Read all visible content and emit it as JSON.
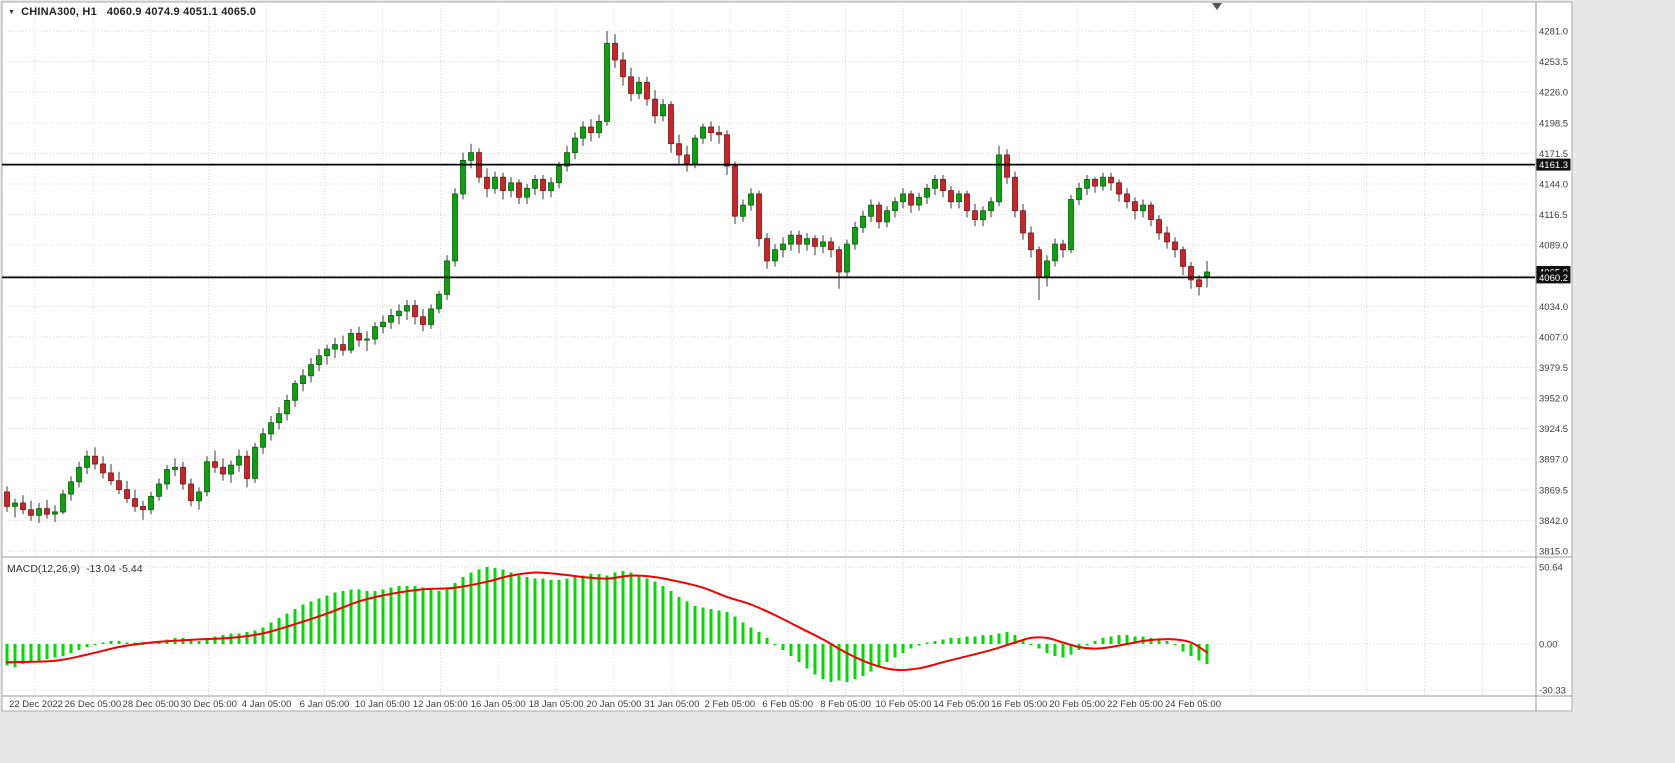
{
  "header": {
    "symbol": "CHINA300, H1",
    "ohlc": "4060.9 4074.9 4051.1 4065.0"
  },
  "icons": {
    "symbol_dropdown": "▼"
  },
  "macd_header": {
    "name": "MACD(12,26,9)",
    "values": "-13.04 -5.44"
  },
  "chart_data": {
    "type": "candlestick",
    "symbol": "CHINA300",
    "timeframe": "H1",
    "displayed_ohlc": {
      "open": 4060.9,
      "high": 4074.9,
      "low": 4051.1,
      "close": 4065.0
    },
    "price_axis": [
      "4281.0",
      "4253.5",
      "4226.0",
      "4198.5",
      "4171.5",
      "4144.0",
      "4116.5",
      "4089.0",
      "4061.5",
      "4034.0",
      "4007.0",
      "3979.5",
      "3952.0",
      "3924.5",
      "3897.0",
      "3869.5",
      "3842.0",
      "3815.0"
    ],
    "ylim": [
      3815.0,
      4281.0
    ],
    "time_axis": [
      "22 Dec 2022",
      "26 Dec 05:00",
      "28 Dec 05:00",
      "30 Dec 05:00",
      "4 Jan 05:00",
      "6 Jan 05:00",
      "10 Jan 05:00",
      "12 Jan 05:00",
      "16 Jan 05:00",
      "18 Jan 05:00",
      "20 Jan 05:00",
      "31 Jan 05:00",
      "2 Feb 05:00",
      "6 Feb 05:00",
      "8 Feb 05:00",
      "10 Feb 05:00",
      "14 Feb 05:00",
      "16 Feb 05:00",
      "20 Feb 05:00",
      "22 Feb 05:00",
      "24 Feb 05:00"
    ],
    "hlines": [
      {
        "value": 4161.3,
        "label": "4161.3"
      },
      {
        "value": 4060.2,
        "label": "4060.2"
      }
    ],
    "price_marker": {
      "value": 4065.0,
      "label": "4065.0"
    },
    "grid": true,
    "colors": {
      "bull": "#0fa00f",
      "bull_border": "#066006",
      "bear": "#c62828",
      "bear_border": "#7f1212",
      "wick": "#3a3a3a",
      "macd_histogram": "#00dc00",
      "macd_signal": "#f40000",
      "hline": "#000000",
      "grid": "#dcdcdc",
      "axis_text": "#3c3c3c",
      "label_box": "#111111",
      "label_text": "#ffffff"
    },
    "candles": [
      [
        3868,
        3873,
        3850,
        3855
      ],
      [
        3855,
        3862,
        3845,
        3858
      ],
      [
        3858,
        3865,
        3848,
        3852
      ],
      [
        3852,
        3860,
        3842,
        3847
      ],
      [
        3847,
        3858,
        3840,
        3853
      ],
      [
        3853,
        3861,
        3844,
        3848
      ],
      [
        3848,
        3856,
        3841,
        3850
      ],
      [
        3850,
        3870,
        3848,
        3866
      ],
      [
        3866,
        3882,
        3860,
        3877
      ],
      [
        3877,
        3895,
        3872,
        3890
      ],
      [
        3890,
        3905,
        3884,
        3900
      ],
      [
        3900,
        3908,
        3888,
        3893
      ],
      [
        3893,
        3900,
        3880,
        3885
      ],
      [
        3885,
        3893,
        3874,
        3878
      ],
      [
        3878,
        3886,
        3866,
        3870
      ],
      [
        3870,
        3878,
        3858,
        3862
      ],
      [
        3862,
        3870,
        3850,
        3855
      ],
      [
        3855,
        3860,
        3843,
        3852
      ],
      [
        3852,
        3868,
        3848,
        3864
      ],
      [
        3864,
        3880,
        3860,
        3875
      ],
      [
        3875,
        3892,
        3870,
        3888
      ],
      [
        3888,
        3898,
        3882,
        3890
      ],
      [
        3890,
        3895,
        3870,
        3875
      ],
      [
        3875,
        3880,
        3855,
        3860
      ],
      [
        3860,
        3872,
        3852,
        3868
      ],
      [
        3868,
        3900,
        3864,
        3895
      ],
      [
        3895,
        3905,
        3885,
        3890
      ],
      [
        3890,
        3898,
        3878,
        3884
      ],
      [
        3884,
        3896,
        3876,
        3892
      ],
      [
        3892,
        3906,
        3886,
        3900
      ],
      [
        3900,
        3905,
        3872,
        3880
      ],
      [
        3880,
        3912,
        3876,
        3908
      ],
      [
        3908,
        3925,
        3902,
        3920
      ],
      [
        3920,
        3936,
        3914,
        3930
      ],
      [
        3930,
        3944,
        3924,
        3938
      ],
      [
        3938,
        3955,
        3932,
        3950
      ],
      [
        3950,
        3968,
        3944,
        3965
      ],
      [
        3965,
        3978,
        3958,
        3972
      ],
      [
        3972,
        3988,
        3966,
        3982
      ],
      [
        3982,
        3996,
        3976,
        3990
      ],
      [
        3990,
        4000,
        3982,
        3996
      ],
      [
        3996,
        4006,
        3988,
        4000
      ],
      [
        4000,
        4008,
        3990,
        3995
      ],
      [
        3995,
        4014,
        3992,
        4010
      ],
      [
        4010,
        4016,
        3998,
        4004
      ],
      [
        4004,
        4012,
        3994,
        4005
      ],
      [
        4005,
        4020,
        4000,
        4016
      ],
      [
        4016,
        4026,
        4010,
        4020
      ],
      [
        4020,
        4032,
        4014,
        4026
      ],
      [
        4026,
        4036,
        4018,
        4030
      ],
      [
        4030,
        4040,
        4022,
        4035
      ],
      [
        4035,
        4040,
        4018,
        4025
      ],
      [
        4025,
        4032,
        4012,
        4018
      ],
      [
        4018,
        4036,
        4014,
        4032
      ],
      [
        4032,
        4048,
        4028,
        4045
      ],
      [
        4045,
        4080,
        4040,
        4075
      ],
      [
        4075,
        4140,
        4070,
        4135
      ],
      [
        4135,
        4172,
        4130,
        4165
      ],
      [
        4165,
        4180,
        4158,
        4172
      ],
      [
        4172,
        4176,
        4145,
        4150
      ],
      [
        4150,
        4158,
        4132,
        4140
      ],
      [
        4140,
        4155,
        4135,
        4150
      ],
      [
        4150,
        4154,
        4130,
        4138
      ],
      [
        4138,
        4150,
        4132,
        4145
      ],
      [
        4145,
        4148,
        4126,
        4132
      ],
      [
        4132,
        4144,
        4126,
        4140
      ],
      [
        4140,
        4152,
        4134,
        4148
      ],
      [
        4148,
        4152,
        4130,
        4138
      ],
      [
        4138,
        4150,
        4132,
        4145
      ],
      [
        4145,
        4164,
        4140,
        4160
      ],
      [
        4160,
        4178,
        4155,
        4172
      ],
      [
        4172,
        4190,
        4166,
        4185
      ],
      [
        4185,
        4200,
        4178,
        4195
      ],
      [
        4195,
        4202,
        4182,
        4190
      ],
      [
        4190,
        4206,
        4185,
        4200
      ],
      [
        4200,
        4281,
        4196,
        4270
      ],
      [
        4270,
        4278,
        4248,
        4255
      ],
      [
        4255,
        4262,
        4232,
        4240
      ],
      [
        4240,
        4248,
        4218,
        4225
      ],
      [
        4225,
        4240,
        4220,
        4235
      ],
      [
        4235,
        4240,
        4214,
        4220
      ],
      [
        4220,
        4228,
        4198,
        4205
      ],
      [
        4205,
        4220,
        4200,
        4215
      ],
      [
        4215,
        4218,
        4172,
        4180
      ],
      [
        4180,
        4188,
        4162,
        4170
      ],
      [
        4170,
        4178,
        4155,
        4162
      ],
      [
        4162,
        4188,
        4158,
        4185
      ],
      [
        4185,
        4198,
        4180,
        4195
      ],
      [
        4195,
        4200,
        4182,
        4190
      ],
      [
        4190,
        4196,
        4180,
        4188
      ],
      [
        4188,
        4192,
        4152,
        4160
      ],
      [
        4160,
        4164,
        4108,
        4115
      ],
      [
        4115,
        4130,
        4110,
        4125
      ],
      [
        4125,
        4140,
        4120,
        4135
      ],
      [
        4135,
        4138,
        4088,
        4095
      ],
      [
        4095,
        4100,
        4068,
        4075
      ],
      [
        4075,
        4090,
        4070,
        4085
      ],
      [
        4085,
        4096,
        4078,
        4090
      ],
      [
        4090,
        4102,
        4084,
        4098
      ],
      [
        4098,
        4102,
        4082,
        4090
      ],
      [
        4090,
        4100,
        4084,
        4095
      ],
      [
        4095,
        4098,
        4080,
        4088
      ],
      [
        4088,
        4098,
        4082,
        4092
      ],
      [
        4092,
        4096,
        4078,
        4085
      ],
      [
        4085,
        4088,
        4050,
        4065
      ],
      [
        4065,
        4094,
        4060,
        4090
      ],
      [
        4090,
        4110,
        4085,
        4105
      ],
      [
        4105,
        4120,
        4100,
        4115
      ],
      [
        4115,
        4130,
        4110,
        4125
      ],
      [
        4125,
        4128,
        4104,
        4110
      ],
      [
        4110,
        4124,
        4105,
        4120
      ],
      [
        4120,
        4132,
        4114,
        4128
      ],
      [
        4128,
        4140,
        4122,
        4135
      ],
      [
        4135,
        4138,
        4118,
        4125
      ],
      [
        4125,
        4136,
        4120,
        4132
      ],
      [
        4132,
        4144,
        4126,
        4140
      ],
      [
        4140,
        4152,
        4134,
        4148
      ],
      [
        4148,
        4152,
        4132,
        4138
      ],
      [
        4138,
        4142,
        4122,
        4128
      ],
      [
        4128,
        4138,
        4122,
        4135
      ],
      [
        4135,
        4138,
        4114,
        4120
      ],
      [
        4120,
        4126,
        4106,
        4112
      ],
      [
        4112,
        4124,
        4106,
        4120
      ],
      [
        4120,
        4132,
        4114,
        4128
      ],
      [
        4128,
        4178,
        4124,
        4170
      ],
      [
        4170,
        4175,
        4144,
        4150
      ],
      [
        4150,
        4155,
        4114,
        4120
      ],
      [
        4120,
        4126,
        4094,
        4100
      ],
      [
        4100,
        4106,
        4078,
        4085
      ],
      [
        4085,
        4088,
        4040,
        4060
      ],
      [
        4060,
        4080,
        4052,
        4075
      ],
      [
        4075,
        4095,
        4070,
        4090
      ],
      [
        4090,
        4094,
        4078,
        4085
      ],
      [
        4085,
        4134,
        4082,
        4130
      ],
      [
        4130,
        4145,
        4125,
        4140
      ],
      [
        4140,
        4152,
        4134,
        4148
      ],
      [
        4148,
        4150,
        4136,
        4142
      ],
      [
        4142,
        4154,
        4138,
        4150
      ],
      [
        4150,
        4154,
        4138,
        4145
      ],
      [
        4145,
        4148,
        4128,
        4135
      ],
      [
        4135,
        4140,
        4122,
        4128
      ],
      [
        4128,
        4132,
        4112,
        4120
      ],
      [
        4120,
        4130,
        4114,
        4125
      ],
      [
        4125,
        4128,
        4106,
        4112
      ],
      [
        4112,
        4116,
        4094,
        4100
      ],
      [
        4100,
        4106,
        4086,
        4092
      ],
      [
        4092,
        4096,
        4078,
        4085
      ],
      [
        4085,
        4088,
        4062,
        4070
      ],
      [
        4070,
        4074,
        4050,
        4058
      ],
      [
        4058,
        4062,
        4044,
        4052
      ],
      [
        4060.9,
        4074.9,
        4051.1,
        4065.0
      ]
    ],
    "macd": {
      "name": "MACD(12,26,9)",
      "histogram_value": -13.04,
      "signal_value": -5.44,
      "axis": [
        "50.64",
        "0.00",
        "-30.33"
      ],
      "ylim": [
        -30.33,
        50.64
      ],
      "histogram": [
        -14,
        -15,
        -13,
        -12,
        -11,
        -10,
        -9,
        -8,
        -6,
        -4,
        -2,
        0,
        1,
        2,
        2,
        1,
        1,
        0,
        1,
        2,
        3,
        4,
        4,
        3,
        2,
        3,
        5,
        6,
        7,
        7,
        8,
        9,
        11,
        14,
        17,
        20,
        23,
        26,
        28,
        30,
        32,
        34,
        35,
        36,
        36,
        35,
        35,
        36,
        37,
        38,
        38,
        38,
        37,
        36,
        35,
        36,
        40,
        44,
        47,
        49,
        50.6,
        50,
        49,
        47,
        45,
        44,
        43,
        43,
        42,
        42,
        43,
        44,
        45,
        46,
        46,
        45,
        47,
        48,
        47,
        45,
        43,
        41,
        38,
        35,
        31,
        28,
        25,
        24,
        23,
        22,
        21,
        18,
        14,
        11,
        8,
        4,
        0,
        -4,
        -8,
        -12,
        -16,
        -20,
        -23,
        -25,
        -24,
        -25,
        -23,
        -21,
        -18,
        -15,
        -12,
        -9,
        -6,
        -3,
        -1,
        1,
        2,
        3,
        4,
        4,
        5,
        5,
        6,
        6,
        7,
        8,
        6,
        3,
        0,
        -3,
        -6,
        -8,
        -9,
        -7,
        -4,
        -1,
        2,
        4,
        5,
        6,
        6,
        5,
        5,
        4,
        3,
        2,
        0,
        -5,
        -8,
        -11,
        -13.04
      ],
      "signal_points": [
        [
          0,
          -12
        ],
        [
          6,
          -11
        ],
        [
          10,
          -7
        ],
        [
          14,
          -2
        ],
        [
          18,
          1
        ],
        [
          24,
          3
        ],
        [
          28,
          4
        ],
        [
          32,
          7
        ],
        [
          36,
          13
        ],
        [
          40,
          20
        ],
        [
          44,
          28
        ],
        [
          48,
          33
        ],
        [
          52,
          36
        ],
        [
          56,
          37
        ],
        [
          60,
          41
        ],
        [
          63,
          45
        ],
        [
          66,
          47
        ],
        [
          69,
          46
        ],
        [
          72,
          44
        ],
        [
          75,
          43
        ],
        [
          78,
          45
        ],
        [
          81,
          44
        ],
        [
          84,
          41
        ],
        [
          87,
          37
        ],
        [
          90,
          31
        ],
        [
          93,
          26
        ],
        [
          96,
          19
        ],
        [
          99,
          11
        ],
        [
          102,
          3
        ],
        [
          105,
          -6
        ],
        [
          108,
          -13
        ],
        [
          111,
          -17
        ],
        [
          114,
          -16
        ],
        [
          117,
          -12
        ],
        [
          120,
          -8
        ],
        [
          123,
          -4
        ],
        [
          126,
          1
        ],
        [
          128,
          4
        ],
        [
          130,
          4
        ],
        [
          132,
          1
        ],
        [
          134,
          -2
        ],
        [
          136,
          -3
        ],
        [
          138,
          -2
        ],
        [
          140,
          0
        ],
        [
          142,
          2
        ],
        [
          144,
          3
        ],
        [
          146,
          3
        ],
        [
          148,
          1
        ],
        [
          150,
          -5.44
        ]
      ]
    }
  }
}
